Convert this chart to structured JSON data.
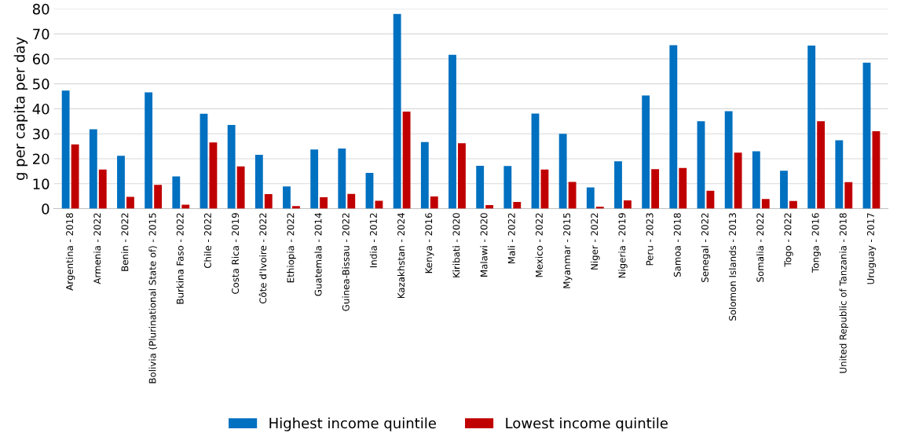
{
  "chart_data": {
    "type": "bar",
    "ylabel": "g per capita per day",
    "categories": [
      "Argentina - 2018",
      "Armenia - 2022",
      "Benin - 2022",
      "Bolivia (Plurinational State of) - 2015",
      "Burkina Faso - 2022",
      "Chile - 2022",
      "Costa Rica - 2019",
      "Côte d'Ivoire - 2022",
      "Ethiopia - 2022",
      "Guatemala - 2014",
      "Guinea-Bissau - 2022",
      "India - 2012",
      "Kazakhstan - 2024",
      "Kenya - 2016",
      "Kiribati - 2020",
      "Malawi - 2020",
      "Mali - 2022",
      "Mexico - 2022",
      "Myanmar - 2015",
      "Niger - 2022",
      "Nigeria - 2019",
      "Peru - 2023",
      "Samoa - 2018",
      "Senegal - 2022",
      "Solomon Islands - 2013",
      "Somalia - 2022",
      "Togo - 2022",
      "Tonga - 2016",
      "United Republic of Tanzania - 2018",
      "Uruguay - 2017"
    ],
    "series": [
      {
        "name": "Highest income quintile",
        "color": "#0070c0",
        "values": [
          47.3,
          31.8,
          21.2,
          46.6,
          12.9,
          38,
          33.5,
          21.6,
          8.9,
          23.7,
          24.1,
          14.3,
          78,
          26.7,
          61.6,
          17.2,
          17.1,
          38.1,
          30,
          8.5,
          19,
          45.3,
          65.5,
          35,
          39,
          23,
          15.2,
          65.3,
          27.4,
          58.5
        ]
      },
      {
        "name": "Lowest income quintile",
        "color": "#c00000",
        "values": [
          25.7,
          15.7,
          4.7,
          9.5,
          1.6,
          26.5,
          16.9,
          5.8,
          1.0,
          4.6,
          5.9,
          3.2,
          38.9,
          4.9,
          26.2,
          1.4,
          2.7,
          15.7,
          10.7,
          0.8,
          3.3,
          15.8,
          16.3,
          7.2,
          22.4,
          3.9,
          3.1,
          35,
          10.6,
          31
        ]
      }
    ],
    "ylim": [
      0,
      80
    ],
    "yticks": [
      0,
      10,
      20,
      30,
      40,
      50,
      60,
      70,
      80
    ],
    "grid": "y",
    "legend": "bottom"
  }
}
